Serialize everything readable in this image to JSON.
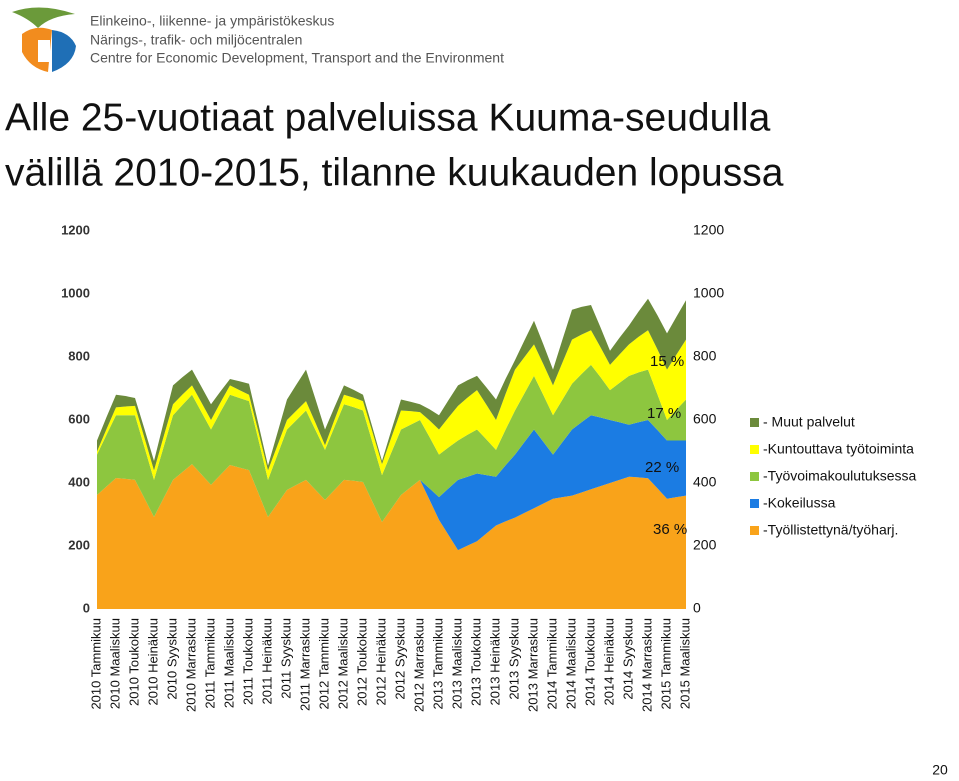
{
  "header": {
    "org_lines": [
      "Elinkeino-, liikenne- ja ympäristökeskus",
      "Närings-, trafik- och miljöcentralen",
      "Centre for Economic Development, Transport and the Environment"
    ]
  },
  "page_number": "20",
  "chart_data": {
    "type": "area",
    "stacked": true,
    "title": [
      "Alle 25-vuotiaat palveluissa Kuuma-seudulla",
      "välillä 2010-2015, tilanne kuukauden lopussa"
    ],
    "categories": [
      "2010 Tammikuu",
      null,
      "2010 Maaliskuu",
      null,
      "2010 Toukokuu",
      null,
      "2010 Heinäkuu",
      null,
      "2010 Syyskuu",
      null,
      "2010 Marraskuu",
      null,
      "2011 Tammikuu",
      null,
      "2011 Maaliskuu",
      null,
      "2011 Toukokuu",
      null,
      "2011 Heinäkuu",
      null,
      "2011 Syyskuu",
      null,
      "2011 Marraskuu",
      null,
      "2012 Tammikuu",
      null,
      "2012 Maaliskuu",
      null,
      "2012 Toukokuu",
      null,
      "2012 Heinäkuu",
      null,
      "2012 Syyskuu",
      null,
      "2012 Marraskuu",
      null,
      "2013 Tammikuu",
      null,
      "2013 Maaliskuu",
      null,
      "2013 Toukokuu",
      null,
      "2013 Heinäkuu",
      null,
      "2013 Syyskuu",
      null,
      "2013 Marraskuu",
      null,
      "2014 Tammikuu",
      null,
      "2014 Maaliskuu",
      null,
      "2014 Toukokuu",
      null,
      "2014 Heinäkuu",
      null,
      "2014 Syyskuu",
      null,
      "2014 Marraskuu",
      null,
      "2015 Tammikuu",
      null,
      "2015 Maaliskuu"
    ],
    "series": [
      {
        "name": "-Työllistettynä/työharj.",
        "color": "#f9a31a",
        "values": [
          362,
          389,
          416,
          413,
          410,
          351,
          292,
          351,
          410,
          435,
          460,
          427,
          394,
          426,
          457,
          449,
          441,
          367,
          292,
          335,
          378,
          394,
          410,
          378,
          346,
          378,
          410,
          407,
          403,
          340,
          276,
          319,
          362,
          386,
          410,
          347,
          283,
          235,
          187,
          201,
          215,
          240,
          265,
          278,
          290,
          305,
          320,
          335,
          350,
          355,
          360,
          370,
          380,
          390,
          400,
          410,
          420,
          418,
          415,
          383,
          350,
          355,
          360
        ]
      },
      {
        "name": "-Kokeilussa",
        "color": "#1b7ce3",
        "values": [
          0,
          0,
          0,
          0,
          0,
          0,
          0,
          0,
          0,
          0,
          0,
          0,
          0,
          0,
          0,
          0,
          0,
          0,
          0,
          0,
          0,
          0,
          0,
          0,
          0,
          0,
          0,
          0,
          0,
          0,
          0,
          0,
          0,
          0,
          0,
          36,
          72,
          148,
          223,
          219,
          215,
          185,
          155,
          178,
          200,
          225,
          250,
          195,
          140,
          175,
          210,
          223,
          235,
          218,
          200,
          183,
          165,
          175,
          185,
          185,
          185,
          180,
          175
        ]
      },
      {
        "name": "-Työvoimakoulutuksessa",
        "color": "#8dc63f",
        "values": [
          128,
          164,
          199,
          202,
          205,
          162,
          118,
          162,
          205,
          213,
          220,
          198,
          176,
          200,
          223,
          221,
          219,
          169,
          118,
          155,
          192,
          206,
          220,
          190,
          159,
          200,
          240,
          234,
          227,
          188,
          149,
          179,
          208,
          199,
          190,
          163,
          135,
          130,
          125,
          133,
          140,
          113,
          85,
          113,
          140,
          155,
          170,
          148,
          125,
          135,
          145,
          153,
          160,
          128,
          95,
          125,
          155,
          158,
          160,
          113,
          65,
          98,
          130
        ]
      },
      {
        "name": "-Kuntouttava työtoiminta",
        "color": "#ffff00",
        "values": [
          10,
          18,
          25,
          28,
          30,
          30,
          30,
          33,
          35,
          33,
          30,
          30,
          30,
          30,
          30,
          25,
          20,
          25,
          30,
          30,
          30,
          30,
          30,
          23,
          15,
          23,
          30,
          30,
          30,
          33,
          35,
          48,
          60,
          43,
          25,
          53,
          80,
          95,
          110,
          118,
          125,
          110,
          95,
          113,
          130,
          115,
          100,
          98,
          95,
          118,
          140,
          125,
          110,
          95,
          80,
          90,
          100,
          113,
          125,
          143,
          160,
          175,
          190
        ]
      },
      {
        "name": "- Muut palvelut",
        "color": "#6b8a3b",
        "values": [
          35,
          38,
          40,
          33,
          25,
          28,
          30,
          45,
          60,
          55,
          50,
          50,
          50,
          35,
          20,
          28,
          35,
          25,
          15,
          40,
          65,
          83,
          100,
          75,
          50,
          40,
          30,
          25,
          20,
          15,
          10,
          23,
          35,
          30,
          25,
          35,
          45,
          55,
          65,
          55,
          45,
          55,
          65,
          48,
          30,
          53,
          75,
          63,
          50,
          73,
          95,
          88,
          80,
          63,
          45,
          53,
          60,
          80,
          100,
          108,
          115,
          120,
          125
        ]
      }
    ],
    "ylim": [
      0,
      1200
    ],
    "yticks": [
      0,
      200,
      400,
      600,
      800,
      1000,
      1200
    ],
    "annotations": [
      "15 %",
      "17 %",
      "22 %",
      "36 %"
    ],
    "legend_position": "right"
  }
}
